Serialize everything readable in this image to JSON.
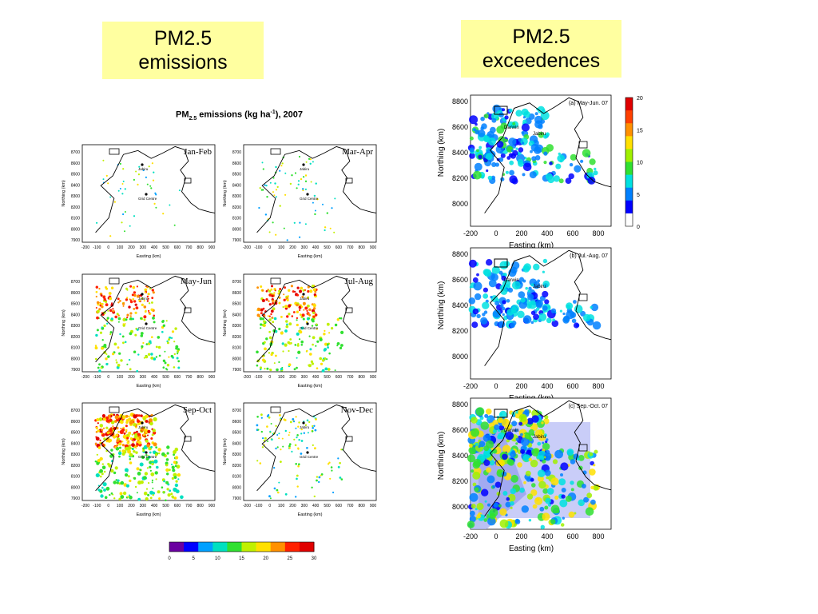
{
  "labels": {
    "emissions_box": [
      "PM2.5",
      "emissions"
    ],
    "exceedences_box": [
      "PM2.5",
      "exceedences"
    ]
  },
  "chart_data": [
    {
      "type": "heatmap",
      "title_parts": {
        "prefix": "PM",
        "sub": "2.5",
        "middle": " emissions (kg ha",
        "sup": "-1",
        "suffix": "), 2007"
      },
      "xlabel": "Easting (km)",
      "ylabel": "Northing (km)",
      "xticks": [
        "-200",
        "-100",
        "0",
        "100",
        "200",
        "300",
        "400",
        "500",
        "600",
        "700",
        "800",
        "900"
      ],
      "yticks": [
        "7900",
        "8000",
        "8100",
        "8200",
        "8300",
        "8400",
        "8500",
        "8600",
        "8700"
      ],
      "xlim": [
        -200,
        900
      ],
      "ylim": [
        7900,
        8750
      ],
      "place_labels": [
        "Jabiru",
        "Grid Centre"
      ],
      "panels": [
        {
          "name": "Jan-Feb",
          "intensity": 0.05
        },
        {
          "name": "Mar-Apr",
          "intensity": 0.1
        },
        {
          "name": "May-Jun",
          "intensity": 0.45
        },
        {
          "name": "Jul-Aug",
          "intensity": 0.5
        },
        {
          "name": "Sep-Oct",
          "intensity": 0.75
        },
        {
          "name": "Nov-Dec",
          "intensity": 0.2
        }
      ],
      "colorbar": {
        "min": 0,
        "max": 30,
        "ticks": [
          "0",
          "5",
          "10",
          "15",
          "20",
          "25",
          "30"
        ],
        "colors": [
          "#6a00a0",
          "#0000ff",
          "#00a0ff",
          "#00e0c0",
          "#30e030",
          "#c0f000",
          "#ffe000",
          "#ff9000",
          "#ff2000",
          "#e00000"
        ]
      }
    },
    {
      "type": "heatmap",
      "xlabel": "Easting (km)",
      "ylabel": "Northing (km)",
      "xticks": [
        "-200",
        "0",
        "200",
        "400",
        "600",
        "800"
      ],
      "yticks": [
        "8000",
        "8200",
        "8400",
        "8600",
        "8800"
      ],
      "xlim": [
        -200,
        900
      ],
      "ylim": [
        7900,
        8850
      ],
      "place_labels": [
        "Darwin",
        "Jabiru"
      ],
      "panels": [
        {
          "name": "(a) May-Jun. 07",
          "intensity": 0.4
        },
        {
          "name": "(b) Jul.-Aug. 07",
          "intensity": 0.3
        },
        {
          "name": "(c) Sep.-Oct. 07",
          "intensity": 0.9
        }
      ],
      "colorbar": {
        "min": 0,
        "max": 20,
        "ticks": [
          "0",
          "5",
          "10",
          "15",
          "20"
        ],
        "colors": [
          "#ffffff",
          "#0000ff",
          "#0080ff",
          "#00e0e0",
          "#30e030",
          "#a0f000",
          "#ffe000",
          "#ff9000",
          "#ff2000",
          "#e00000"
        ]
      }
    }
  ]
}
